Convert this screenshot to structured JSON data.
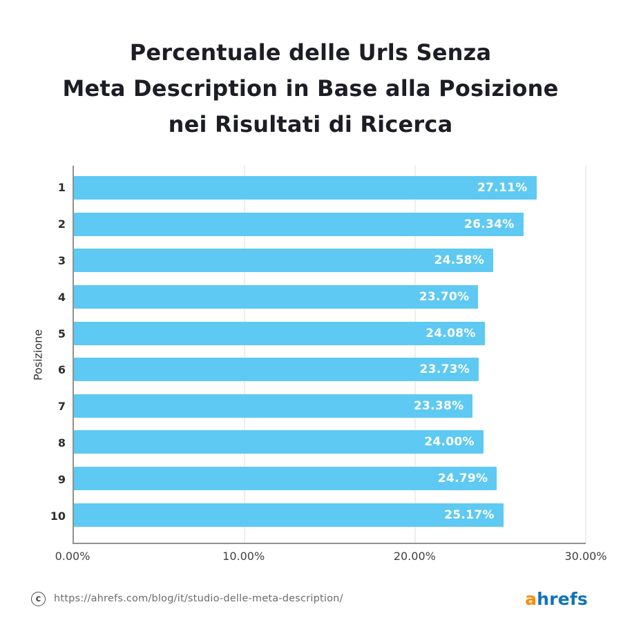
{
  "title": {
    "line1": "Percentuale delle Urls Senza",
    "line2": "Meta Description in Base alla Posizione",
    "line3": "nei Risultati di Ricerca"
  },
  "chart_data": {
    "type": "bar",
    "orientation": "horizontal",
    "title": "Percentuale delle Urls Senza Meta Description in Base alla Posizione nei Risultati di Ricerca",
    "ylabel": "Posizione",
    "xlabel": "",
    "categories": [
      "1",
      "2",
      "3",
      "4",
      "5",
      "6",
      "7",
      "8",
      "9",
      "10"
    ],
    "values": [
      27.11,
      26.34,
      24.58,
      23.7,
      24.08,
      23.73,
      23.38,
      24.0,
      24.79,
      25.17
    ],
    "value_labels": [
      "27.11%",
      "26.34%",
      "24.58%",
      "23.70%",
      "24.08%",
      "23.73%",
      "23.38%",
      "24.00%",
      "24.79%",
      "25.17%"
    ],
    "xlim": [
      0,
      30
    ],
    "x_ticks": [
      0,
      10,
      20,
      30
    ],
    "x_tick_labels": [
      "0.00%",
      "10.00%",
      "20.00%",
      "30.00%"
    ],
    "grid": true,
    "legend": false,
    "bar_color": "#5ec9f2",
    "value_label_color": "#ffffff"
  },
  "footer": {
    "copyright_symbol": "c",
    "url": "https://ahrefs.com/blog/it/studio-delle-meta-description/",
    "logo": {
      "part1": "a",
      "part2": "hrefs",
      "part1_color": "#ff8a00",
      "part2_color": "#1173b9"
    }
  }
}
